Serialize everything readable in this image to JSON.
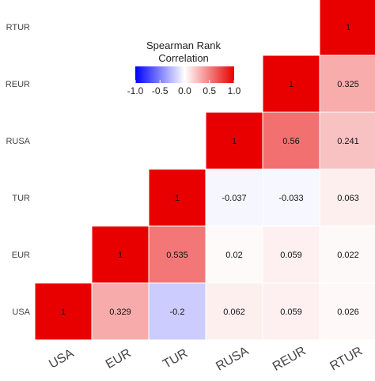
{
  "chart_data": {
    "type": "heatmap",
    "categories": [
      "USA",
      "EUR",
      "TUR",
      "RUSA",
      "REUR",
      "RTUR"
    ],
    "matrix": [
      [
        1,
        null,
        null,
        null,
        null,
        null
      ],
      [
        0.329,
        1,
        null,
        null,
        null,
        null
      ],
      [
        -0.2,
        0.535,
        1,
        null,
        null,
        null
      ],
      [
        0.062,
        0.02,
        -0.037,
        1,
        null,
        null
      ],
      [
        0.059,
        0.059,
        -0.033,
        0.56,
        1,
        null
      ],
      [
        0.026,
        0.022,
        0.063,
        0.241,
        0.325,
        1
      ]
    ],
    "cell_labels": [
      [
        "1",
        null,
        null,
        null,
        null,
        null
      ],
      [
        "0.329",
        "1",
        null,
        null,
        null,
        null
      ],
      [
        "-0.2",
        "0.535",
        "1",
        null,
        null,
        null
      ],
      [
        "0.062",
        "0.02",
        "-0.037",
        "1",
        null,
        null
      ],
      [
        "0.059",
        "0.059",
        "-0.033",
        "0.56",
        "1",
        null
      ],
      [
        "0.026",
        "0.022",
        "0.063",
        "0.241",
        "0.325",
        "1"
      ]
    ],
    "legend": {
      "title_lines": [
        "Spearman Rank",
        "Correlation"
      ],
      "range": [
        -1.0,
        1.0
      ],
      "ticks": [
        "-1.0",
        "-0.5",
        "0.0",
        "0.5",
        "1.0"
      ],
      "colors": {
        "low": "#0000ff",
        "mid": "#ffffff",
        "high": "#e80000"
      },
      "placement": "top-left"
    }
  }
}
